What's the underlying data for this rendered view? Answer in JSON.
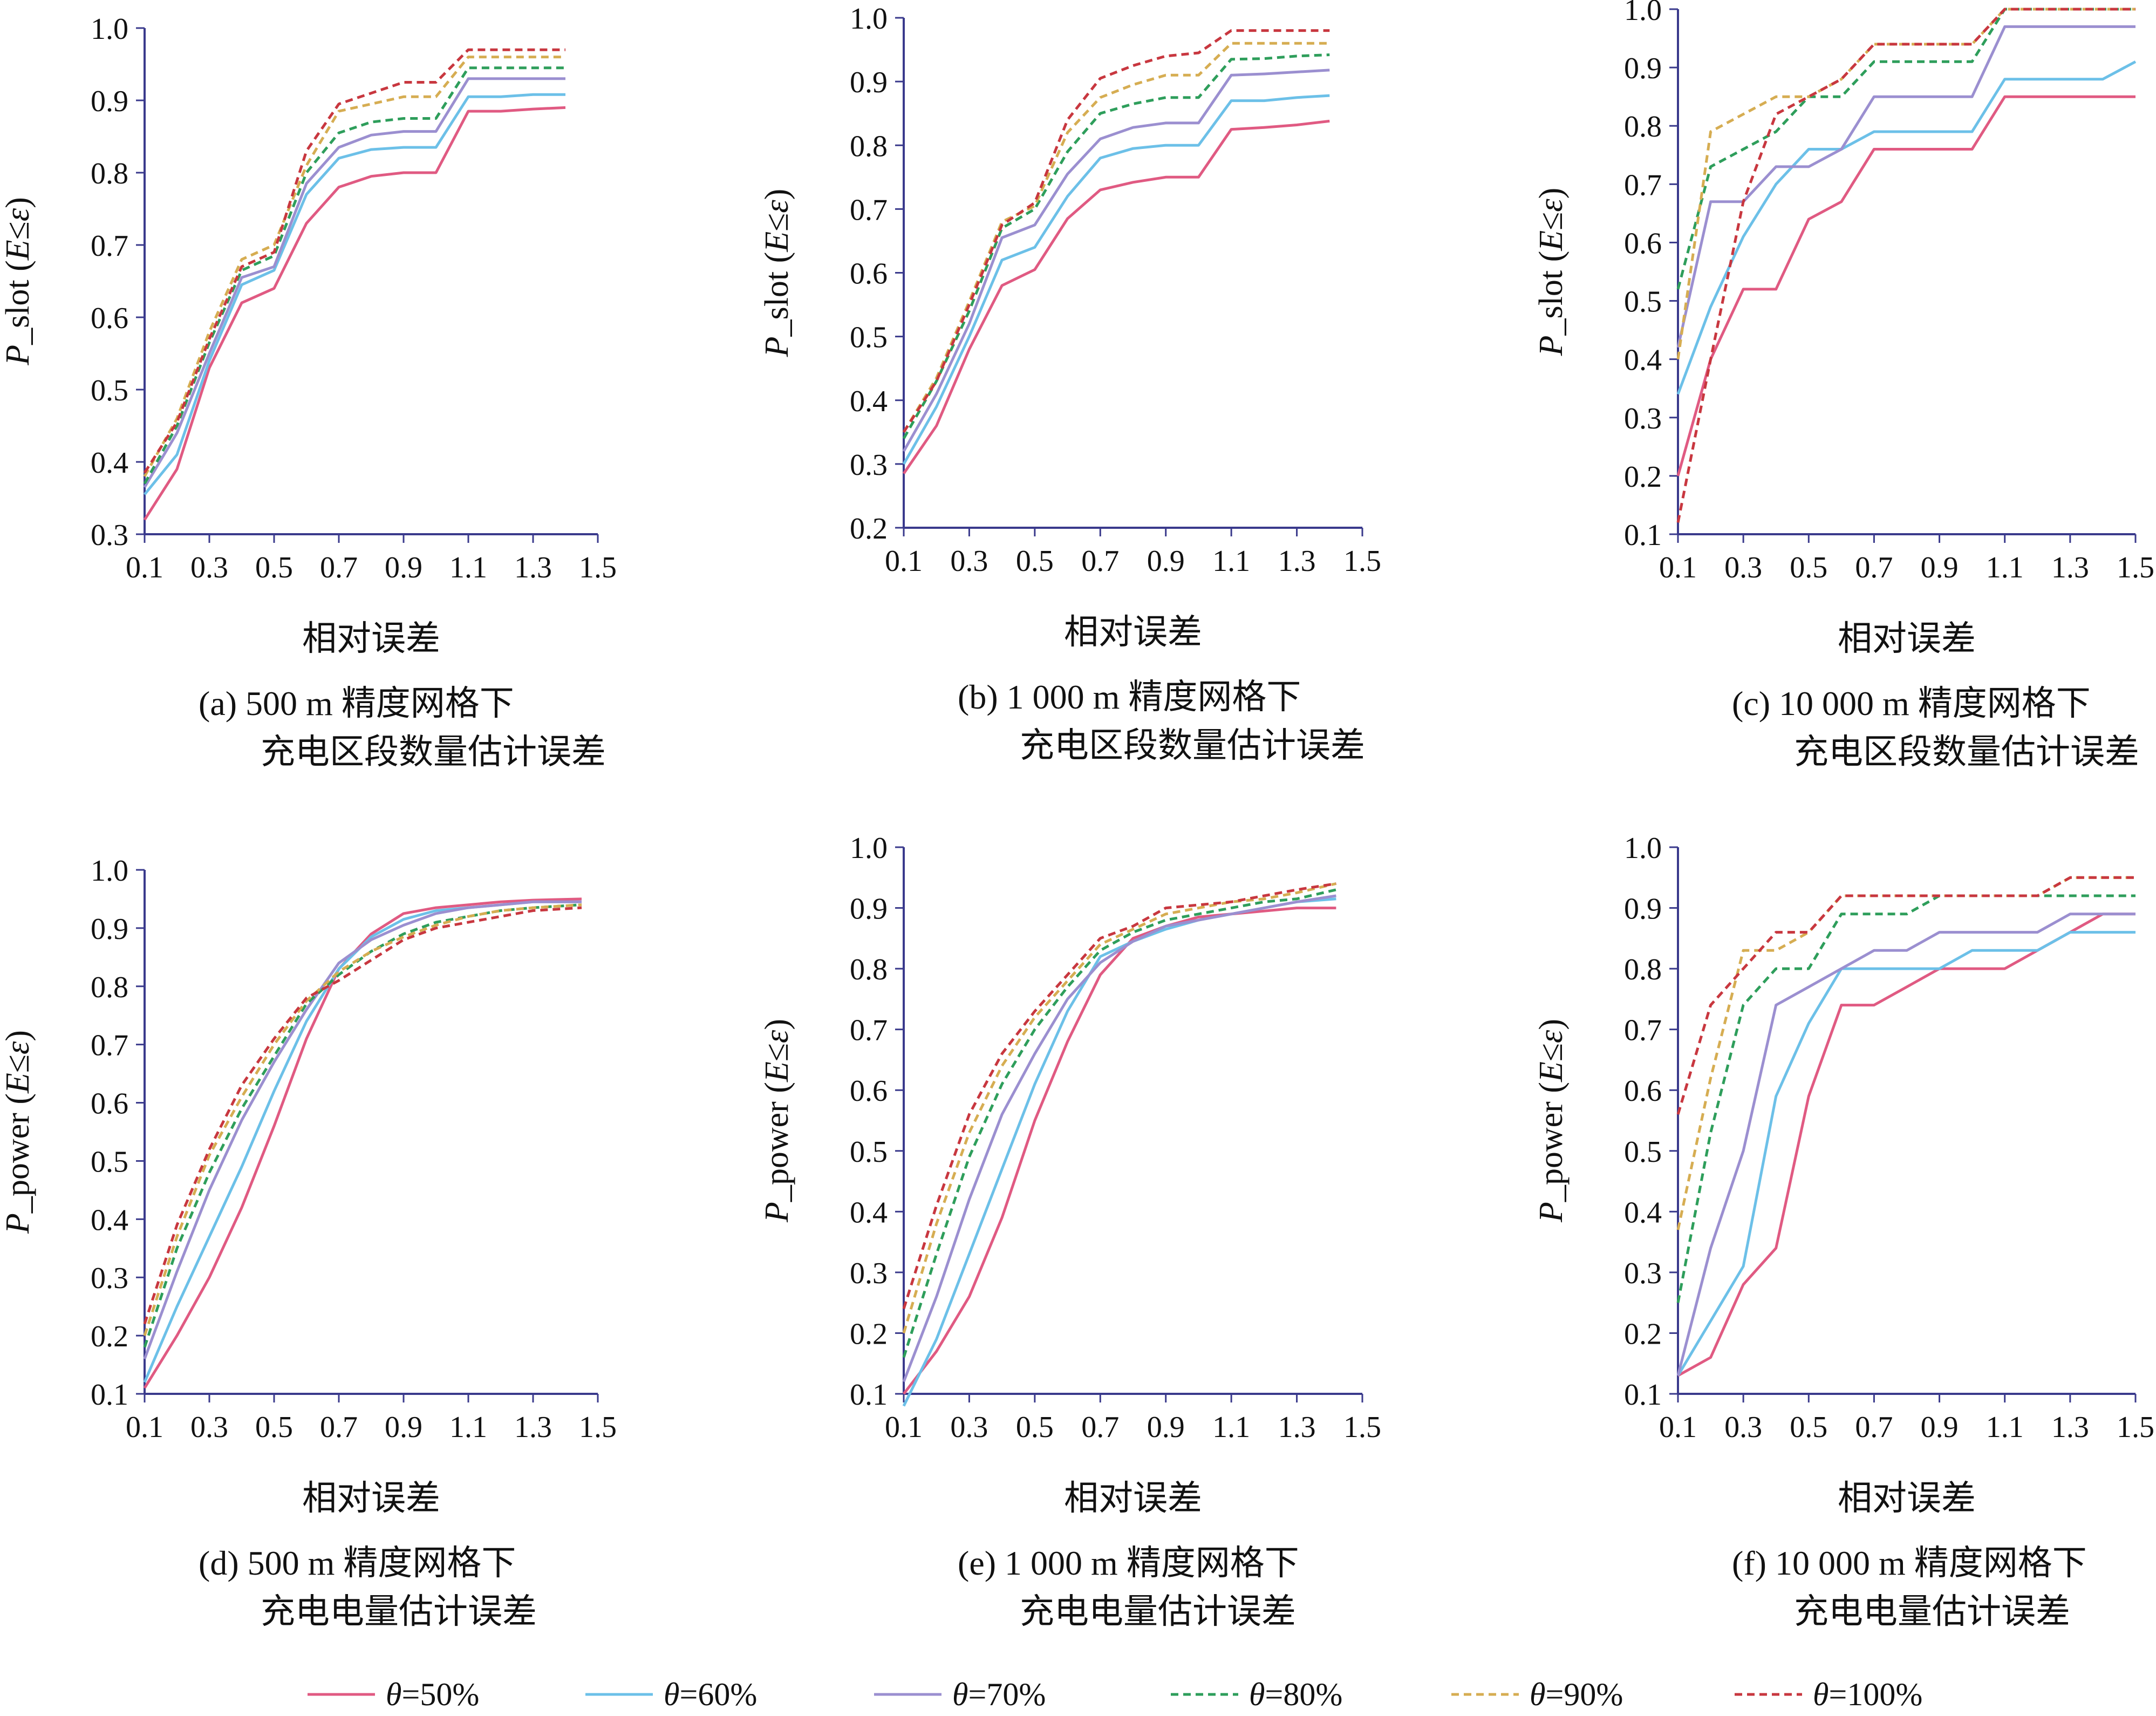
{
  "chart_data": [
    {
      "panel": "a",
      "type": "line",
      "ylabel_parts": [
        "P",
        "_slot (",
        "E",
        "≤",
        "ε",
        ")"
      ],
      "xlabel": "相对误差",
      "caption_line1": "(a) 500 m 精度网格下",
      "caption_line2": "充电区段数量估计误差",
      "xlim": [
        0.1,
        1.5
      ],
      "ylim": [
        0.3,
        1.0
      ],
      "x_ticks": [
        "0.1",
        "0.3",
        "0.5",
        "0.7",
        "0.9",
        "1.1",
        "1.3",
        "1.5"
      ],
      "y_ticks": [
        "0.3",
        "0.4",
        "0.5",
        "0.6",
        "0.7",
        "0.8",
        "0.9",
        "1.0"
      ],
      "x": [
        0.1,
        0.2,
        0.3,
        0.4,
        0.5,
        0.6,
        0.7,
        0.8,
        0.9,
        1.0,
        1.1,
        1.2,
        1.3,
        1.4
      ],
      "series": [
        {
          "values": [
            0.32,
            0.39,
            0.53,
            0.62,
            0.64,
            0.73,
            0.78,
            0.795,
            0.8,
            0.8,
            0.885,
            0.885,
            0.888,
            0.89
          ]
        },
        {
          "values": [
            0.355,
            0.41,
            0.54,
            0.645,
            0.665,
            0.77,
            0.82,
            0.832,
            0.835,
            0.835,
            0.905,
            0.905,
            0.908,
            0.908
          ]
        },
        {
          "values": [
            0.365,
            0.44,
            0.55,
            0.655,
            0.67,
            0.785,
            0.835,
            0.852,
            0.857,
            0.857,
            0.93,
            0.93,
            0.93,
            0.93
          ]
        },
        {
          "values": [
            0.37,
            0.45,
            0.565,
            0.665,
            0.685,
            0.8,
            0.855,
            0.87,
            0.875,
            0.875,
            0.945,
            0.945,
            0.945,
            0.945
          ]
        },
        {
          "values": [
            0.38,
            0.46,
            0.58,
            0.68,
            0.7,
            0.81,
            0.885,
            0.895,
            0.905,
            0.905,
            0.96,
            0.96,
            0.96,
            0.96
          ]
        },
        {
          "values": [
            0.385,
            0.455,
            0.57,
            0.67,
            0.69,
            0.83,
            0.895,
            0.91,
            0.925,
            0.925,
            0.97,
            0.97,
            0.97,
            0.97
          ]
        }
      ]
    },
    {
      "panel": "b",
      "type": "line",
      "ylabel_parts": [
        "P",
        "_slot (",
        "E",
        "≤",
        "ε",
        ")"
      ],
      "xlabel": "相对误差",
      "caption_line1": "(b) 1 000 m 精度网格下",
      "caption_line2": "充电区段数量估计误差",
      "xlim": [
        0.1,
        1.5
      ],
      "ylim": [
        0.2,
        1.0
      ],
      "x_ticks": [
        "0.1",
        "0.3",
        "0.5",
        "0.7",
        "0.9",
        "1.1",
        "1.3",
        "1.5"
      ],
      "y_ticks": [
        "0.2",
        "0.3",
        "0.4",
        "0.5",
        "0.6",
        "0.7",
        "0.8",
        "0.9",
        "1.0"
      ],
      "x": [
        0.1,
        0.2,
        0.3,
        0.4,
        0.5,
        0.6,
        0.7,
        0.8,
        0.9,
        1.0,
        1.1,
        1.2,
        1.3,
        1.4
      ],
      "series": [
        {
          "values": [
            0.285,
            0.36,
            0.48,
            0.58,
            0.605,
            0.685,
            0.73,
            0.742,
            0.75,
            0.75,
            0.825,
            0.828,
            0.832,
            0.838
          ]
        },
        {
          "values": [
            0.3,
            0.39,
            0.5,
            0.62,
            0.64,
            0.72,
            0.78,
            0.795,
            0.8,
            0.8,
            0.87,
            0.87,
            0.875,
            0.878
          ]
        },
        {
          "values": [
            0.32,
            0.41,
            0.52,
            0.655,
            0.675,
            0.755,
            0.81,
            0.828,
            0.835,
            0.835,
            0.91,
            0.912,
            0.915,
            0.918
          ]
        },
        {
          "values": [
            0.34,
            0.43,
            0.54,
            0.67,
            0.7,
            0.79,
            0.85,
            0.865,
            0.875,
            0.875,
            0.935,
            0.936,
            0.94,
            0.942
          ]
        },
        {
          "values": [
            0.35,
            0.435,
            0.555,
            0.68,
            0.705,
            0.82,
            0.875,
            0.895,
            0.91,
            0.91,
            0.96,
            0.96,
            0.96,
            0.96
          ]
        },
        {
          "values": [
            0.35,
            0.43,
            0.55,
            0.675,
            0.71,
            0.84,
            0.905,
            0.925,
            0.94,
            0.945,
            0.98,
            0.98,
            0.98,
            0.98
          ]
        }
      ]
    },
    {
      "panel": "c",
      "type": "line",
      "ylabel_parts": [
        "P",
        "_slot (",
        "E",
        "≤",
        "ε",
        ")"
      ],
      "xlabel": "相对误差",
      "caption_line1": "(c) 10 000 m 精度网格下",
      "caption_line2": "充电区段数量估计误差",
      "xlim": [
        0.1,
        1.5
      ],
      "ylim": [
        0.1,
        1.0
      ],
      "x_ticks": [
        "0.1",
        "0.3",
        "0.5",
        "0.7",
        "0.9",
        "1.1",
        "1.3",
        "1.5"
      ],
      "y_ticks": [
        "0.1",
        "0.2",
        "0.3",
        "0.4",
        "0.5",
        "0.6",
        "0.7",
        "0.8",
        "0.9",
        "1.0"
      ],
      "x": [
        0.1,
        0.2,
        0.3,
        0.4,
        0.5,
        0.6,
        0.7,
        0.8,
        0.9,
        1.0,
        1.1,
        1.2,
        1.3,
        1.4,
        1.5
      ],
      "series": [
        {
          "values": [
            0.2,
            0.4,
            0.52,
            0.52,
            0.64,
            0.67,
            0.76,
            0.76,
            0.76,
            0.76,
            0.85,
            0.85,
            0.85,
            0.85,
            0.85
          ]
        },
        {
          "values": [
            0.34,
            0.49,
            0.61,
            0.7,
            0.76,
            0.76,
            0.79,
            0.79,
            0.79,
            0.79,
            0.88,
            0.88,
            0.88,
            0.88,
            0.91
          ]
        },
        {
          "values": [
            0.42,
            0.67,
            0.67,
            0.73,
            0.73,
            0.76,
            0.85,
            0.85,
            0.85,
            0.85,
            0.97,
            0.97,
            0.97,
            0.97,
            0.97
          ]
        },
        {
          "values": [
            0.52,
            0.73,
            0.76,
            0.79,
            0.85,
            0.85,
            0.91,
            0.91,
            0.91,
            0.91,
            1.0,
            1.0,
            1.0,
            1.0,
            1.0
          ]
        },
        {
          "values": [
            0.4,
            0.79,
            0.82,
            0.85,
            0.85,
            0.88,
            0.94,
            0.94,
            0.94,
            0.94,
            1.0,
            1.0,
            1.0,
            1.0,
            1.0
          ]
        },
        {
          "values": [
            0.12,
            0.4,
            0.67,
            0.82,
            0.85,
            0.88,
            0.94,
            0.94,
            0.94,
            0.94,
            1.0,
            1.0,
            1.0,
            1.0,
            1.0
          ]
        }
      ]
    },
    {
      "panel": "d",
      "type": "line",
      "ylabel_parts": [
        "P",
        "_power (",
        "E",
        "≤",
        "ε",
        ")"
      ],
      "xlabel": "相对误差",
      "caption_line1": "(d) 500 m 精度网格下",
      "caption_line2": "充电电量估计误差",
      "xlim": [
        0.1,
        1.5
      ],
      "ylim": [
        0.1,
        1.0
      ],
      "x_ticks": [
        "0.1",
        "0.3",
        "0.5",
        "0.7",
        "0.9",
        "1.1",
        "1.3",
        "1.5"
      ],
      "y_ticks": [
        "0.1",
        "0.2",
        "0.3",
        "0.4",
        "0.5",
        "0.6",
        "0.7",
        "0.8",
        "0.9",
        "1.0"
      ],
      "x": [
        0.1,
        0.2,
        0.3,
        0.4,
        0.5,
        0.6,
        0.7,
        0.8,
        0.9,
        1.0,
        1.1,
        1.2,
        1.3,
        1.45
      ],
      "series": [
        {
          "values": [
            0.11,
            0.2,
            0.3,
            0.42,
            0.56,
            0.71,
            0.83,
            0.89,
            0.925,
            0.935,
            0.94,
            0.945,
            0.948,
            0.95
          ]
        },
        {
          "values": [
            0.12,
            0.25,
            0.37,
            0.49,
            0.62,
            0.74,
            0.83,
            0.885,
            0.915,
            0.93,
            0.935,
            0.94,
            0.945,
            0.945
          ]
        },
        {
          "values": [
            0.16,
            0.31,
            0.45,
            0.57,
            0.67,
            0.76,
            0.84,
            0.88,
            0.905,
            0.925,
            0.935,
            0.94,
            0.945,
            0.945
          ]
        },
        {
          "values": [
            0.18,
            0.35,
            0.48,
            0.59,
            0.68,
            0.77,
            0.82,
            0.86,
            0.89,
            0.91,
            0.92,
            0.93,
            0.935,
            0.94
          ]
        },
        {
          "values": [
            0.2,
            0.37,
            0.51,
            0.61,
            0.7,
            0.775,
            0.825,
            0.86,
            0.885,
            0.905,
            0.92,
            0.93,
            0.935,
            0.94
          ]
        },
        {
          "values": [
            0.22,
            0.39,
            0.52,
            0.63,
            0.71,
            0.78,
            0.81,
            0.845,
            0.88,
            0.9,
            0.91,
            0.92,
            0.93,
            0.935
          ]
        }
      ]
    },
    {
      "panel": "e",
      "type": "line",
      "ylabel_parts": [
        "P",
        "_power (",
        "E",
        "≤",
        "ε",
        ")"
      ],
      "xlabel": "相对误差",
      "caption_line1": "(e) 1 000 m 精度网格下",
      "caption_line2": "充电电量估计误差",
      "xlim": [
        0.1,
        1.5
      ],
      "ylim": [
        0.1,
        1.0
      ],
      "x_ticks": [
        "0.1",
        "0.3",
        "0.5",
        "0.7",
        "0.9",
        "1.1",
        "1.3",
        "1.5"
      ],
      "y_ticks": [
        "0.1",
        "0.2",
        "0.3",
        "0.4",
        "0.5",
        "0.6",
        "0.7",
        "0.8",
        "0.9",
        "1.0"
      ],
      "x": [
        0.1,
        0.2,
        0.3,
        0.4,
        0.5,
        0.6,
        0.7,
        0.8,
        0.9,
        1.0,
        1.1,
        1.2,
        1.3,
        1.42
      ],
      "series": [
        {
          "values": [
            0.1,
            0.17,
            0.26,
            0.39,
            0.55,
            0.68,
            0.79,
            0.85,
            0.87,
            0.885,
            0.89,
            0.895,
            0.9,
            0.9
          ]
        },
        {
          "values": [
            0.08,
            0.19,
            0.33,
            0.47,
            0.61,
            0.73,
            0.82,
            0.845,
            0.865,
            0.88,
            0.89,
            0.9,
            0.91,
            0.915
          ]
        },
        {
          "values": [
            0.12,
            0.26,
            0.42,
            0.56,
            0.66,
            0.75,
            0.81,
            0.845,
            0.87,
            0.88,
            0.89,
            0.9,
            0.91,
            0.92
          ]
        },
        {
          "values": [
            0.16,
            0.33,
            0.49,
            0.61,
            0.7,
            0.77,
            0.83,
            0.86,
            0.88,
            0.89,
            0.9,
            0.91,
            0.915,
            0.93
          ]
        },
        {
          "values": [
            0.2,
            0.38,
            0.53,
            0.64,
            0.72,
            0.78,
            0.84,
            0.865,
            0.89,
            0.9,
            0.91,
            0.915,
            0.925,
            0.94
          ]
        },
        {
          "values": [
            0.24,
            0.41,
            0.56,
            0.66,
            0.73,
            0.79,
            0.85,
            0.87,
            0.9,
            0.905,
            0.91,
            0.92,
            0.93,
            0.94
          ]
        }
      ]
    },
    {
      "panel": "f",
      "type": "line",
      "ylabel_parts": [
        "P",
        "_power (",
        "E",
        "≤",
        "ε",
        ")"
      ],
      "xlabel": "相对误差",
      "caption_line1": "(f) 10 000 m 精度网格下",
      "caption_line2": "充电电量估计误差",
      "xlim": [
        0.1,
        1.5
      ],
      "ylim": [
        0.1,
        1.0
      ],
      "x_ticks": [
        "0.1",
        "0.3",
        "0.5",
        "0.7",
        "0.9",
        "1.1",
        "1.3",
        "1.5"
      ],
      "y_ticks": [
        "0.1",
        "0.2",
        "0.3",
        "0.4",
        "0.5",
        "0.6",
        "0.7",
        "0.8",
        "0.9",
        "1.0"
      ],
      "x": [
        0.1,
        0.2,
        0.3,
        0.4,
        0.5,
        0.6,
        0.7,
        0.8,
        0.9,
        1.0,
        1.1,
        1.2,
        1.3,
        1.4,
        1.5
      ],
      "series": [
        {
          "values": [
            0.13,
            0.16,
            0.28,
            0.34,
            0.59,
            0.74,
            0.74,
            0.77,
            0.8,
            0.8,
            0.8,
            0.83,
            0.86,
            0.89,
            0.89
          ]
        },
        {
          "values": [
            0.13,
            0.22,
            0.31,
            0.59,
            0.71,
            0.8,
            0.8,
            0.8,
            0.8,
            0.83,
            0.83,
            0.83,
            0.86,
            0.86,
            0.86
          ]
        },
        {
          "values": [
            0.13,
            0.34,
            0.5,
            0.74,
            0.77,
            0.8,
            0.83,
            0.83,
            0.86,
            0.86,
            0.86,
            0.86,
            0.89,
            0.89,
            0.89
          ]
        },
        {
          "values": [
            0.25,
            0.53,
            0.74,
            0.8,
            0.8,
            0.89,
            0.89,
            0.89,
            0.92,
            0.92,
            0.92,
            0.92,
            0.92,
            0.92,
            0.92
          ]
        },
        {
          "values": [
            0.37,
            0.62,
            0.83,
            0.83,
            0.86,
            0.92,
            0.92,
            0.92,
            0.92,
            0.92,
            0.92,
            0.92,
            0.95,
            0.95,
            0.95
          ]
        },
        {
          "values": [
            0.56,
            0.74,
            0.8,
            0.86,
            0.86,
            0.92,
            0.92,
            0.92,
            0.92,
            0.92,
            0.92,
            0.92,
            0.95,
            0.95,
            0.95
          ]
        }
      ]
    }
  ],
  "legend": [
    {
      "sym": "θ",
      "value": "=50%",
      "color": "#e05a82",
      "dash": ""
    },
    {
      "sym": "θ",
      "value": "=60%",
      "color": "#6cc0e8",
      "dash": ""
    },
    {
      "sym": "θ",
      "value": "=70%",
      "color": "#9b8fd0",
      "dash": ""
    },
    {
      "sym": "θ",
      "value": "=80%",
      "color": "#2e9e5b",
      "dash": "14,9"
    },
    {
      "sym": "θ",
      "value": "=90%",
      "color": "#d6ad52",
      "dash": "14,9"
    },
    {
      "sym": "θ",
      "value": "=100%",
      "color": "#c8373f",
      "dash": "14,9"
    }
  ]
}
